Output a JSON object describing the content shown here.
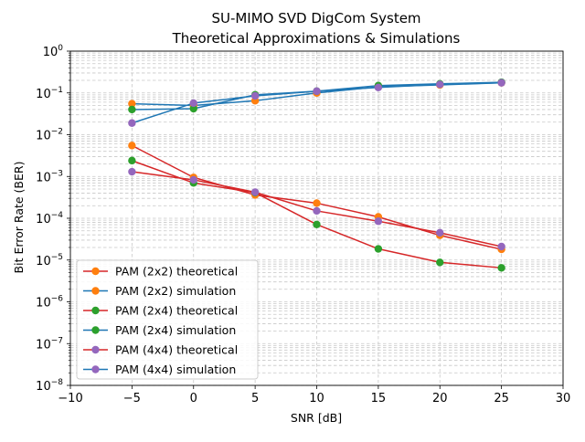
{
  "chart_data": {
    "type": "line",
    "title": "SU-MIMO SVD DigCom System",
    "subtitle": "Theoretical Approximations & Simulations",
    "xlabel": "SNR [dB]",
    "ylabel": "Bit Error Rate (BER)",
    "xlim": [
      -10,
      30
    ],
    "ylim": [
      1e-08,
      1
    ],
    "yscale": "log",
    "grid": "major and minor (y), major (x), dashed light gray",
    "legend_position": "lower-left",
    "x_ticks": [
      "−10",
      "−5",
      "0",
      "5",
      "10",
      "15",
      "20",
      "25",
      "30"
    ],
    "x_tick_values": [
      -10,
      -5,
      0,
      5,
      10,
      15,
      20,
      25,
      30
    ],
    "y_ticks": [
      {
        "base": "10",
        "exp": "0",
        "value": 1
      },
      {
        "base": "10",
        "exp": "−1",
        "value": 0.1
      },
      {
        "base": "10",
        "exp": "−2",
        "value": 0.01
      },
      {
        "base": "10",
        "exp": "−3",
        "value": 0.001
      },
      {
        "base": "10",
        "exp": "−4",
        "value": 0.0001
      },
      {
        "base": "10",
        "exp": "−5",
        "value": 1e-05
      },
      {
        "base": "10",
        "exp": "−6",
        "value": 1e-06
      },
      {
        "base": "10",
        "exp": "−7",
        "value": 1e-07
      },
      {
        "base": "10",
        "exp": "−8",
        "value": 1e-08
      }
    ],
    "x": [
      -5,
      0,
      5,
      10,
      15,
      20,
      25
    ],
    "series": [
      {
        "name": "PAM (2x2) theoretical",
        "line_color": "#d62728",
        "marker_color": "#ff7f0e",
        "values": [
          0.0055,
          0.00095,
          0.00036,
          0.00023,
          0.000108,
          3.9e-05,
          1.8e-05
        ]
      },
      {
        "name": "PAM (2x2) simulation",
        "line_color": "#1f77b4",
        "marker_color": "#ff7f0e",
        "values": [
          0.055,
          0.05,
          0.065,
          0.1,
          0.14,
          0.155,
          0.175
        ]
      },
      {
        "name": "PAM (2x4) theoretical",
        "line_color": "#d62728",
        "marker_color": "#2ca02c",
        "values": [
          0.0024,
          0.0007,
          0.00041,
          7.1e-05,
          1.85e-05,
          8.8e-06,
          6.5e-06
        ]
      },
      {
        "name": "PAM (2x4) simulation",
        "line_color": "#1f77b4",
        "marker_color": "#2ca02c",
        "values": [
          0.04,
          0.042,
          0.09,
          0.11,
          0.15,
          0.165,
          0.18
        ]
      },
      {
        "name": "PAM (4x4) theoretical",
        "line_color": "#d62728",
        "marker_color": "#9467bd",
        "values": [
          0.0013,
          0.00083,
          0.00042,
          0.00015,
          8.5e-05,
          4.5e-05,
          2.1e-05
        ]
      },
      {
        "name": "PAM (4x4) simulation",
        "line_color": "#1f77b4",
        "marker_color": "#9467bd",
        "values": [
          0.019,
          0.057,
          0.085,
          0.11,
          0.135,
          0.16,
          0.175
        ]
      }
    ]
  }
}
